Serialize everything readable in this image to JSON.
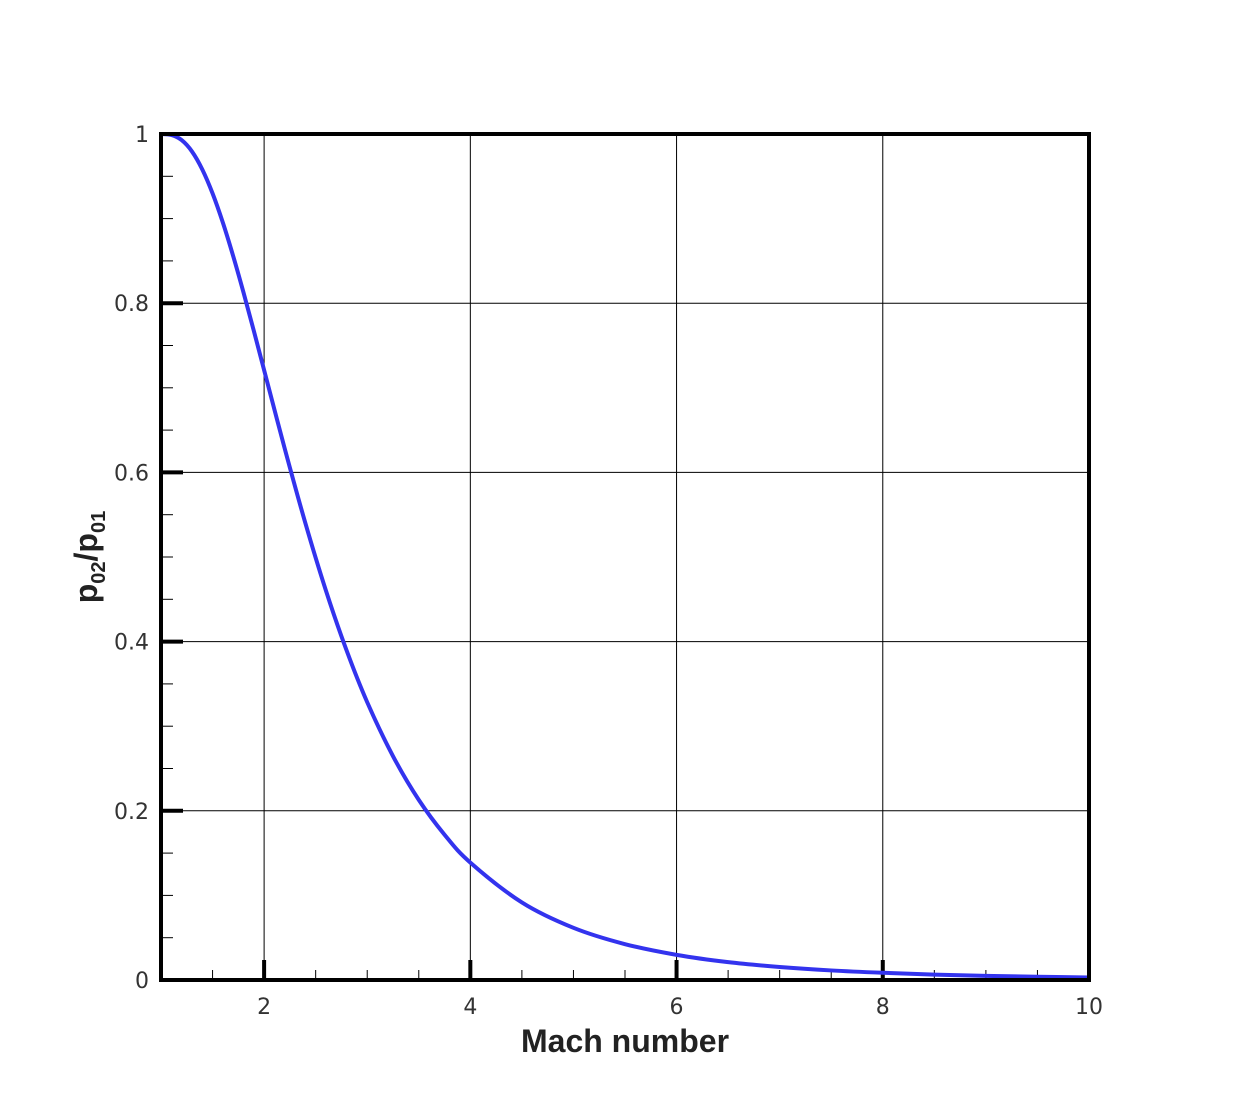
{
  "chart_data": {
    "type": "line",
    "title": "",
    "xlabel": "Mach number",
    "ylabel": {
      "p1": "p",
      "sub1": "02",
      "slash": "/",
      "p2": "p",
      "sub2": "01"
    },
    "xlim": [
      1,
      10
    ],
    "ylim": [
      0,
      1
    ],
    "x_ticks": [
      2,
      4,
      6,
      8,
      10
    ],
    "x_tick_labels": [
      "2",
      "4",
      "6",
      "8",
      "10"
    ],
    "y_ticks": [
      0,
      0.2,
      0.4,
      0.6,
      0.8,
      1
    ],
    "y_tick_labels": [
      "0",
      "0.2",
      "0.4",
      "0.6",
      "0.8",
      "1"
    ],
    "grid": true,
    "legend": "none",
    "series": [
      {
        "color": "#3333ee",
        "x": [
          1.0,
          1.1,
          1.2,
          1.3,
          1.4,
          1.5,
          1.6,
          1.7,
          1.8,
          1.9,
          2.0,
          2.2,
          2.4,
          2.6,
          2.8,
          3.0,
          3.25,
          3.5,
          3.75,
          4.0,
          4.5,
          5.0,
          5.5,
          6.0,
          6.5,
          7.0,
          7.5,
          8.0,
          8.5,
          9.0,
          9.5,
          10.0
        ],
        "y": [
          1.0,
          0.9989,
          0.9928,
          0.9794,
          0.9582,
          0.9298,
          0.8952,
          0.8557,
          0.8127,
          0.7674,
          0.7209,
          0.6281,
          0.5401,
          0.4601,
          0.3895,
          0.3283,
          0.2646,
          0.2129,
          0.1717,
          0.1388,
          0.0917,
          0.0617,
          0.0424,
          0.0297,
          0.0211,
          0.0154,
          0.0113,
          0.0085,
          0.0064,
          0.0049,
          0.0038,
          0.003
        ]
      }
    ]
  }
}
